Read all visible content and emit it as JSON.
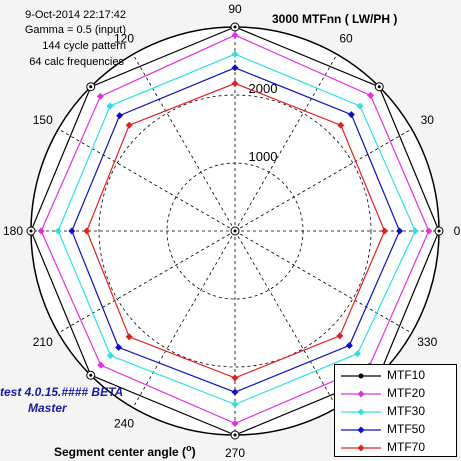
{
  "info": {
    "date": "9-Oct-2014 22:17:42",
    "gamma": "Gamma = 0.5 (input)",
    "pattern": "144 cycle pattern",
    "calc": "64 calc frequencies"
  },
  "software": {
    "version": "test 4.0.15.#### BETA",
    "edition": "Master"
  },
  "chart_data": {
    "type": "polar-line",
    "title": "",
    "radial_label": "MTFnn  ( LW/PH )",
    "angular_label": "Segment center angle",
    "angular_unit": "o",
    "rmax": 3000,
    "radial_ticks": [
      1000,
      2000,
      3000
    ],
    "angle_ticks": [
      0,
      30,
      60,
      90,
      120,
      150,
      180,
      210,
      240,
      270,
      300,
      330
    ],
    "angle_tick_labels": [
      "0",
      "30",
      "60",
      "90",
      "120",
      "150",
      "180",
      "210",
      "240",
      "270",
      "",
      "330"
    ],
    "angles": [
      0,
      45,
      90,
      135,
      180,
      225,
      270,
      315,
      360
    ],
    "series": [
      {
        "name": "MTF10",
        "color": "#000000",
        "marker": "circle",
        "values": [
          3000,
          3000,
          3000,
          3000,
          3000,
          3000,
          3000,
          3000,
          3000
        ]
      },
      {
        "name": "MTF20",
        "color": "#e030e0",
        "marker": "diamond",
        "values": [
          2850,
          2820,
          2880,
          2800,
          2850,
          2790,
          2830,
          2800,
          2850
        ]
      },
      {
        "name": "MTF30",
        "color": "#30e0e0",
        "marker": "diamond",
        "values": [
          2650,
          2600,
          2600,
          2600,
          2600,
          2590,
          2550,
          2550,
          2650
        ]
      },
      {
        "name": "MTF50",
        "color": "#1010c0",
        "marker": "diamond",
        "values": [
          2420,
          2420,
          2400,
          2400,
          2400,
          2420,
          2370,
          2380,
          2420
        ]
      },
      {
        "name": "MTF70",
        "color": "#e02020",
        "marker": "diamond",
        "values": [
          2200,
          2200,
          2170,
          2200,
          2180,
          2200,
          2160,
          2180,
          2200
        ]
      }
    ],
    "grid": true,
    "legend_position": "bottom-right"
  }
}
